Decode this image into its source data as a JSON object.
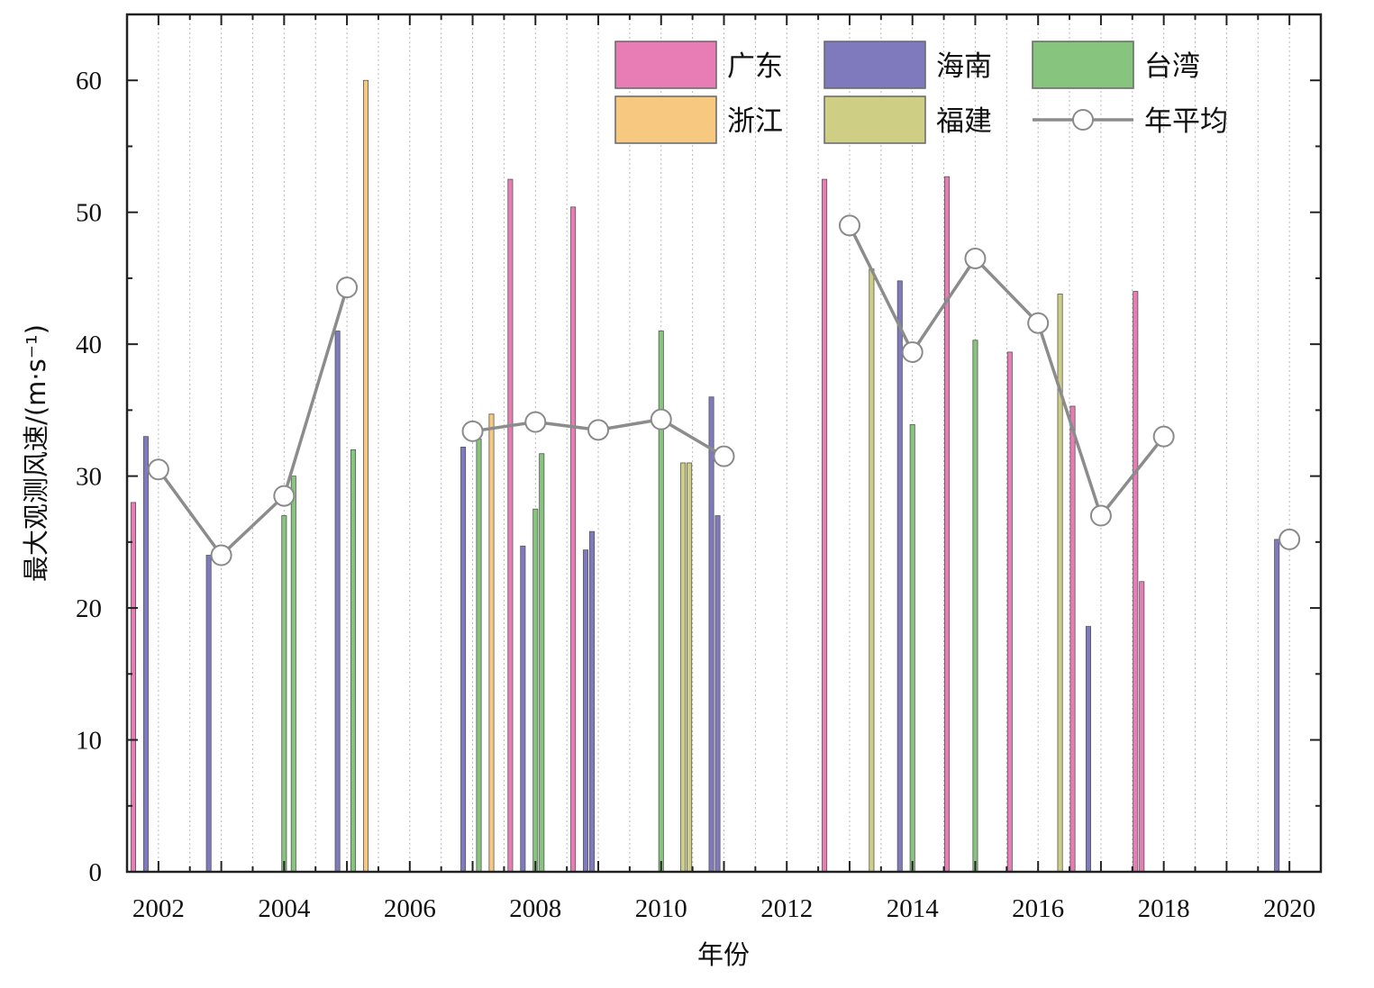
{
  "chart_data": {
    "type": "bar",
    "xlabel": "年份",
    "ylabel": "最大观测风速/(m·s⁻¹)",
    "xlim": [
      2001.5,
      2020.5
    ],
    "ylim": [
      0,
      65
    ],
    "x_ticks": [
      2002,
      2004,
      2006,
      2008,
      2010,
      2012,
      2014,
      2016,
      2018,
      2020
    ],
    "y_ticks": [
      0,
      10,
      20,
      30,
      40,
      50,
      60
    ],
    "grid": "vertical dotted lines at half-year intervals",
    "legend_position": "top-right",
    "colors": {
      "广东": "#e77db4",
      "海南": "#7e7abd",
      "台湾": "#87c47d",
      "浙江": "#f6c880",
      "福建": "#cfce85",
      "年平均": "#8c8c8c"
    },
    "legend": [
      {
        "name": "广东",
        "kind": "bar"
      },
      {
        "name": "海南",
        "kind": "bar"
      },
      {
        "name": "台湾",
        "kind": "bar"
      },
      {
        "name": "浙江",
        "kind": "bar"
      },
      {
        "name": "福建",
        "kind": "bar"
      },
      {
        "name": "年平均",
        "kind": "line"
      }
    ],
    "bars": [
      {
        "series": "广东",
        "x": 2001.6,
        "value": 28
      },
      {
        "series": "海南",
        "x": 2001.8,
        "value": 33
      },
      {
        "series": "海南",
        "x": 2002.8,
        "value": 24
      },
      {
        "series": "台湾",
        "x": 2004.0,
        "value": 27
      },
      {
        "series": "台湾",
        "x": 2004.15,
        "value": 30
      },
      {
        "series": "海南",
        "x": 2004.85,
        "value": 41
      },
      {
        "series": "台湾",
        "x": 2005.1,
        "value": 32
      },
      {
        "series": "浙江",
        "x": 2005.3,
        "value": 60
      },
      {
        "series": "海南",
        "x": 2006.85,
        "value": 32.2
      },
      {
        "series": "台湾",
        "x": 2007.1,
        "value": 32.8
      },
      {
        "series": "浙江",
        "x": 2007.3,
        "value": 34.7
      },
      {
        "series": "广东",
        "x": 2007.6,
        "value": 52.5
      },
      {
        "series": "海南",
        "x": 2007.8,
        "value": 24.7
      },
      {
        "series": "台湾",
        "x": 2008.0,
        "value": 27.5
      },
      {
        "series": "台湾",
        "x": 2008.1,
        "value": 31.7
      },
      {
        "series": "广东",
        "x": 2008.6,
        "value": 50.4
      },
      {
        "series": "海南",
        "x": 2008.8,
        "value": 24.4
      },
      {
        "series": "海南",
        "x": 2008.9,
        "value": 25.8
      },
      {
        "series": "台湾",
        "x": 2010.0,
        "value": 41
      },
      {
        "series": "福建",
        "x": 2010.35,
        "value": 31
      },
      {
        "series": "福建",
        "x": 2010.45,
        "value": 31
      },
      {
        "series": "海南",
        "x": 2010.8,
        "value": 36
      },
      {
        "series": "海南",
        "x": 2010.9,
        "value": 27
      },
      {
        "series": "广东",
        "x": 2012.6,
        "value": 52.5
      },
      {
        "series": "福建",
        "x": 2013.35,
        "value": 45.7
      },
      {
        "series": "海南",
        "x": 2013.8,
        "value": 44.8
      },
      {
        "series": "台湾",
        "x": 2014.0,
        "value": 33.9
      },
      {
        "series": "广东",
        "x": 2014.55,
        "value": 52.7
      },
      {
        "series": "台湾",
        "x": 2015.0,
        "value": 40.3
      },
      {
        "series": "广东",
        "x": 2015.55,
        "value": 39.4
      },
      {
        "series": "福建",
        "x": 2016.35,
        "value": 43.8
      },
      {
        "series": "广东",
        "x": 2016.55,
        "value": 35.3
      },
      {
        "series": "海南",
        "x": 2016.8,
        "value": 18.6
      },
      {
        "series": "广东",
        "x": 2017.55,
        "value": 44
      },
      {
        "series": "广东",
        "x": 2017.65,
        "value": 22
      },
      {
        "series": "海南",
        "x": 2019.8,
        "value": 25.2
      }
    ],
    "annual_average": [
      {
        "segment": 1,
        "x": 2002,
        "value": 30.5
      },
      {
        "segment": 1,
        "x": 2003,
        "value": 24
      },
      {
        "segment": 1,
        "x": 2004,
        "value": 28.5
      },
      {
        "segment": 1,
        "x": 2005,
        "value": 44.3
      },
      {
        "segment": 2,
        "x": 2007,
        "value": 33.4
      },
      {
        "segment": 2,
        "x": 2008,
        "value": 34.1
      },
      {
        "segment": 2,
        "x": 2009,
        "value": 33.5
      },
      {
        "segment": 2,
        "x": 2010,
        "value": 34.3
      },
      {
        "segment": 2,
        "x": 2011,
        "value": 31.5
      },
      {
        "segment": 3,
        "x": 2013,
        "value": 49
      },
      {
        "segment": 3,
        "x": 2014,
        "value": 39.4
      },
      {
        "segment": 3,
        "x": 2015,
        "value": 46.5
      },
      {
        "segment": 3,
        "x": 2016,
        "value": 41.6
      },
      {
        "segment": 3,
        "x": 2017,
        "value": 27
      },
      {
        "segment": 3,
        "x": 2018,
        "value": 33
      },
      {
        "segment": 4,
        "x": 2020,
        "value": 25.2
      }
    ]
  }
}
